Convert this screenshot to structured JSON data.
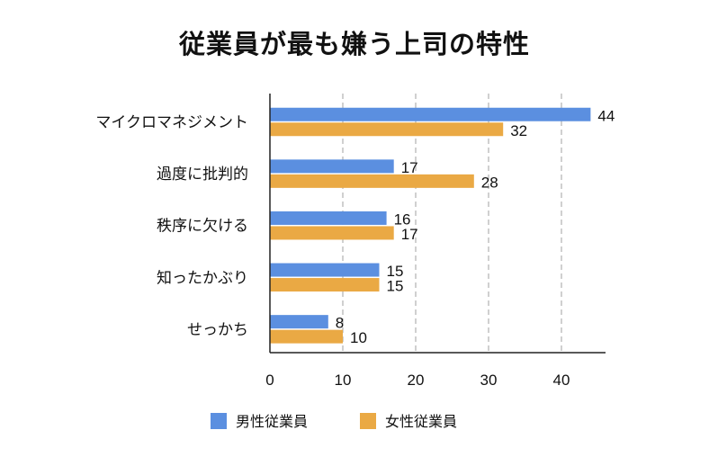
{
  "chart_data": {
    "type": "bar",
    "orientation": "horizontal",
    "title": "従業員が最も嫌う上司の特性",
    "categories": [
      "マイクロマネジメント",
      "過度に批判的",
      "秩序に欠ける",
      "知ったかぶり",
      "せっかち"
    ],
    "series": [
      {
        "name": "男性従業員",
        "values": [
          44,
          17,
          16,
          15,
          8
        ],
        "color": "#5b8fe0"
      },
      {
        "name": "女性従業員",
        "values": [
          32,
          28,
          17,
          15,
          10
        ],
        "color": "#eaa944"
      }
    ],
    "xlim": [
      0,
      45
    ],
    "xticks": [
      0,
      10,
      20,
      30,
      40
    ],
    "grid": "vertical dashed",
    "legend": "bottom-center"
  }
}
